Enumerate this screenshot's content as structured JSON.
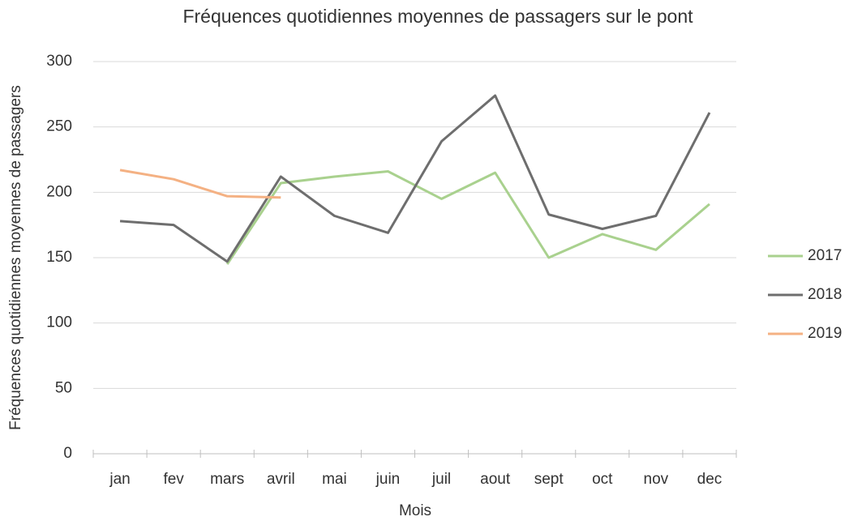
{
  "chart_data": {
    "type": "line",
    "title": "Fréquences quotidiennes moyennes de passagers sur le pont",
    "x_label": "Mois",
    "y_label": "Fréquences quotidiennes moyennes de passagers",
    "categories": [
      "jan",
      "fev",
      "mars",
      "avril",
      "mai",
      "juin",
      "juil",
      "aout",
      "sept",
      "oct",
      "nov",
      "dec"
    ],
    "series": [
      {
        "name": "2017",
        "color": "#a9d18e",
        "values": [
          null,
          null,
          145,
          207,
          212,
          216,
          195,
          215,
          150,
          168,
          156,
          191
        ]
      },
      {
        "name": "2018",
        "color": "#6e6e6e",
        "values": [
          178,
          175,
          147,
          212,
          182,
          169,
          239,
          274,
          183,
          172,
          182,
          261
        ]
      },
      {
        "name": "2019",
        "color": "#f4b183",
        "values": [
          217,
          210,
          197,
          196,
          null,
          null,
          null,
          null,
          null,
          null,
          null,
          null
        ]
      }
    ],
    "ylim": [
      0,
      300
    ],
    "yticks": [
      0,
      50,
      100,
      150,
      200,
      250,
      300
    ],
    "grid": true,
    "legend": "right"
  }
}
